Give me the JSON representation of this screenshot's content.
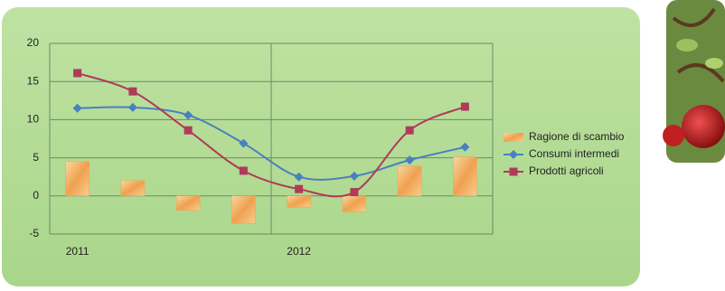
{
  "chart_data": {
    "type": "combo",
    "categories": [
      "2011",
      null,
      null,
      null,
      "2012",
      null,
      null,
      null
    ],
    "series": [
      {
        "name": "Ragione di scambio",
        "type": "bar",
        "color": "#f0a050",
        "values": [
          4.5,
          2.0,
          -1.9,
          -3.6,
          -1.5,
          -2.1,
          3.9,
          5.1
        ]
      },
      {
        "name": "Consumi intermedi",
        "type": "line",
        "marker": "diamond",
        "color": "#4a7fc0",
        "values": [
          11.5,
          11.6,
          10.6,
          6.9,
          2.5,
          2.6,
          4.7,
          6.4
        ]
      },
      {
        "name": "Prodotti agricoli",
        "type": "line",
        "marker": "square",
        "color": "#b03a5a",
        "values": [
          16.1,
          13.7,
          8.6,
          3.3,
          0.9,
          0.5,
          8.6,
          11.7
        ]
      }
    ],
    "ylim": [
      -5,
      20
    ],
    "yticks": [
      -5,
      0,
      5,
      10,
      15,
      20
    ],
    "grid": true,
    "legend": "right"
  }
}
